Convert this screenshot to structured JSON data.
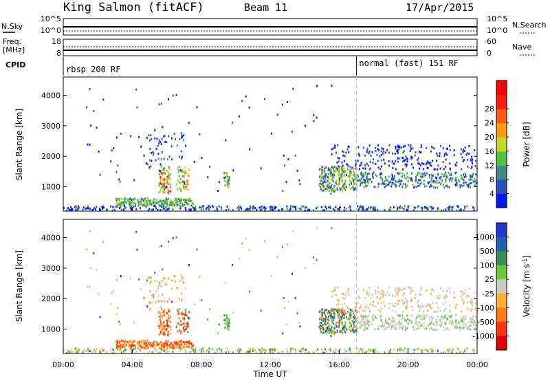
{
  "header": {
    "station": "King Salmon (fitACF)",
    "beam": "Beam 11",
    "date": "17/Apr/2015"
  },
  "params": {
    "nsky_label": "N.Sky",
    "nsearch_label": "N.Search",
    "freq_label_1": "Freq.",
    "freq_label_2": "[MHz]",
    "nave_label": "Nave",
    "cpid_label": "CPID",
    "nsky_ticks": [
      "10^5",
      "10^0"
    ],
    "nsearch_ticks": [
      "10^5",
      "10^0"
    ],
    "freq_ticks": [
      "18",
      "8"
    ],
    "nave_ticks": [
      "60",
      "0"
    ]
  },
  "cpid": {
    "mode1": "rbsp 200 RF",
    "mode2": "normal (fast) 151 RF",
    "switch_hour": 17
  },
  "chart_data": [
    {
      "type": "heatmap",
      "name": "power",
      "ylabel": "Slant Range [km]",
      "yticks": [
        "1000",
        "2000",
        "3000",
        "4000"
      ],
      "ylim": [
        200,
        4600
      ],
      "xlim": [
        0,
        24
      ],
      "colorbar": {
        "label": "Power [dB]",
        "ticks": [
          "4",
          "8",
          "12",
          "16",
          "20",
          "24",
          "28"
        ],
        "colors": [
          "#0018ff",
          "#2b50b8",
          "#3f8a7e",
          "#4ec43f",
          "#c8d62a",
          "#ff9a17",
          "#ff5a0f",
          "#ff1b0b",
          "#ff0000"
        ]
      }
    },
    {
      "type": "heatmap",
      "name": "velocity",
      "ylabel": "Slant Range [km]",
      "yticks": [
        "1000",
        "2000",
        "3000",
        "4000"
      ],
      "ylim": [
        200,
        4600
      ],
      "xlim": [
        0,
        24
      ],
      "xlabel": "Time UT",
      "xticks": [
        "00:00",
        "04:00",
        "08:00",
        "12:00",
        "16:00",
        "20:00",
        "00:00"
      ],
      "colorbar": {
        "label": "Velocity [m s^-1]",
        "ticks": [
          "1000",
          "500",
          "100",
          "25",
          "-25",
          "-100",
          "-500",
          "-1000"
        ],
        "colors": [
          "#2436c9",
          "#1f5fb3",
          "#3c8a55",
          "#67c83a",
          "#c9c9c0",
          "#ffae33",
          "#ff7a1a",
          "#ff3310",
          "#e00000"
        ]
      }
    }
  ]
}
